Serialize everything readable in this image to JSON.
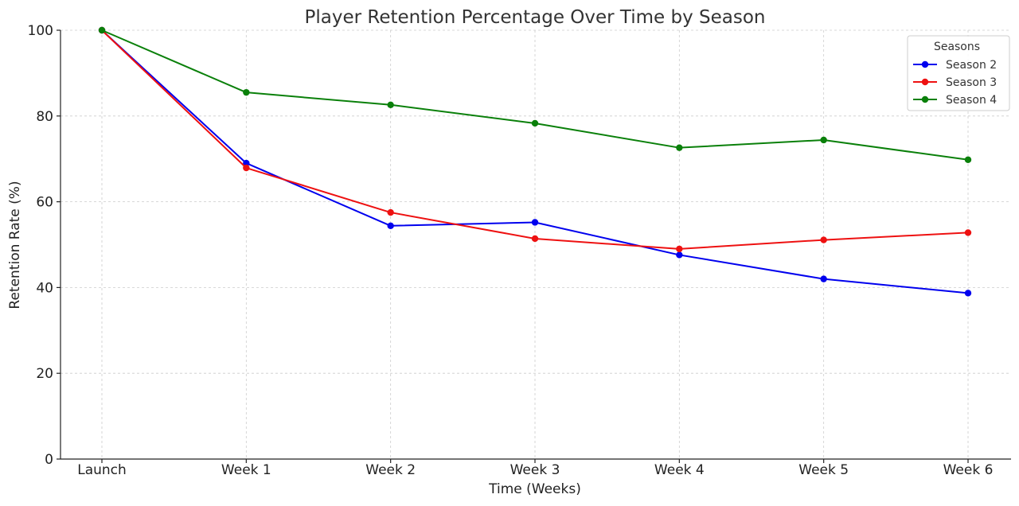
{
  "chart_data": {
    "type": "line",
    "title": "Player Retention Percentage Over Time by Season",
    "xlabel": "Time (Weeks)",
    "ylabel": "Retention Rate (%)",
    "categories": [
      "Launch",
      "Week 1",
      "Week 2",
      "Week 3",
      "Week 4",
      "Week 5",
      "Week 6"
    ],
    "ylim": [
      0,
      100
    ],
    "yticks": [
      0,
      20,
      40,
      60,
      80,
      100
    ],
    "grid": true,
    "legend": {
      "title": "Seasons",
      "placement": "top-right"
    },
    "series": [
      {
        "name": "Season 2",
        "color": "#0000ee",
        "values": [
          100,
          69.0,
          54.4,
          55.2,
          47.6,
          42.0,
          38.7
        ]
      },
      {
        "name": "Season 3",
        "color": "#ee1111",
        "values": [
          100,
          67.9,
          57.5,
          51.4,
          49.0,
          51.1,
          52.8
        ]
      },
      {
        "name": "Season 4",
        "color": "#0a800a",
        "values": [
          100,
          85.5,
          82.6,
          78.3,
          72.6,
          74.4,
          69.8
        ]
      }
    ]
  }
}
